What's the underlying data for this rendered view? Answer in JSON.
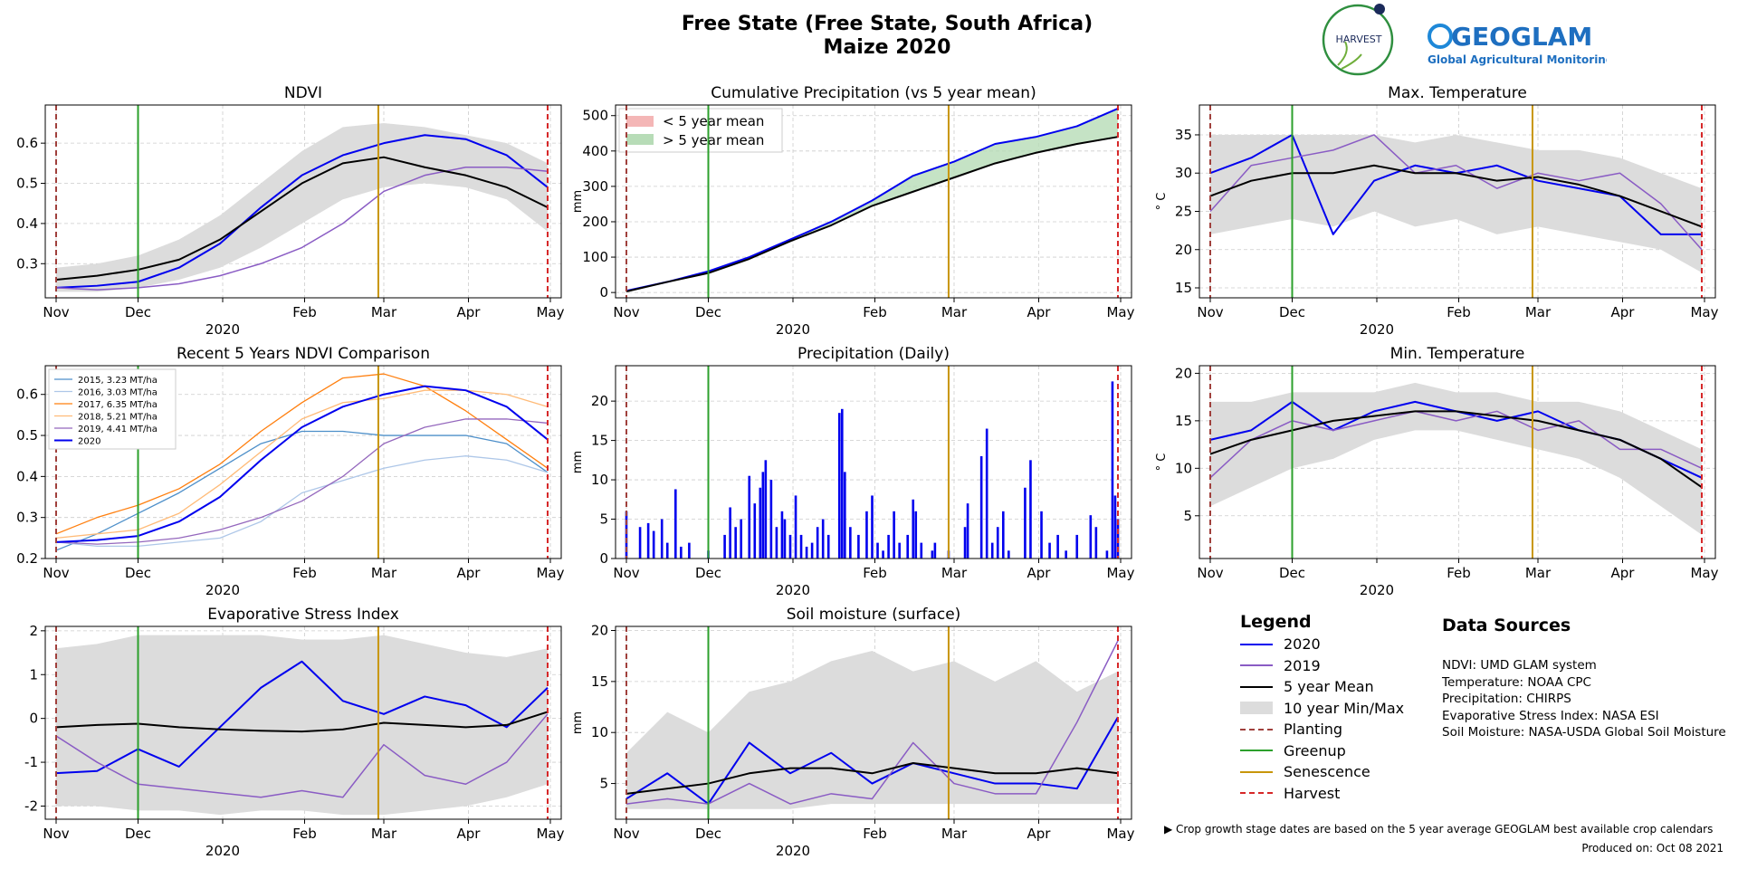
{
  "header": {
    "title_line1": "Free State (Free State, South Africa)",
    "title_line2": "Maize 2020"
  },
  "logos": {
    "harvest": "HARVEST",
    "geoglam_main": "GEOGLAM",
    "geoglam_sub": "Global Agricultural Monitoring"
  },
  "colors": {
    "y2020": "#0000ee",
    "y2019": "#8a5cc4",
    "mean": "#000000",
    "range": "#dcdcdc",
    "planting": "#a0403c",
    "greenup": "#2ca02c",
    "senescence": "#c8960a",
    "harvest": "#d62728"
  },
  "axes": {
    "months": [
      "Nov",
      "Dec",
      "Feb",
      "Mar",
      "Apr",
      "May"
    ],
    "year_label": "2020",
    "stage_days": {
      "planting": 0,
      "greenup": 30,
      "senescence": 118,
      "harvest": 180
    }
  },
  "legend": {
    "title": "Legend",
    "items": [
      "2020",
      "2019",
      "5 year Mean",
      "10 year Min/Max",
      "Planting",
      "Greenup",
      "Senescence",
      "Harvest"
    ]
  },
  "sources": {
    "title": "Data Sources",
    "lines": [
      "NDVI: UMD GLAM system",
      "Temperature: NOAA CPC",
      "Precipitation: CHIRPS",
      "Evaporative Stress Index: NASA ESI",
      "Soil Moisture: NASA-USDA Global Soil Moisture"
    ]
  },
  "footnote": "▶ Crop growth stage dates are based on the 5 year average GEOGLAM best available crop calendars",
  "produced": "Produced on: Oct 08 2021",
  "chart_data": [
    {
      "id": "ndvi",
      "type": "line",
      "title": "NDVI",
      "ylabel": "",
      "x": [
        0,
        15,
        30,
        45,
        60,
        75,
        90,
        105,
        120,
        135,
        150,
        165,
        180
      ],
      "ylim": [
        0.215,
        0.695
      ],
      "yticks": [
        0.3,
        0.4,
        0.5,
        0.6
      ],
      "band": {
        "min": [
          0.23,
          0.23,
          0.24,
          0.26,
          0.29,
          0.34,
          0.4,
          0.46,
          0.49,
          0.5,
          0.49,
          0.46,
          0.38
        ],
        "max": [
          0.29,
          0.3,
          0.32,
          0.36,
          0.42,
          0.5,
          0.58,
          0.64,
          0.65,
          0.64,
          0.62,
          0.6,
          0.55
        ]
      },
      "series": [
        {
          "name": "2020",
          "values": [
            0.24,
            0.245,
            0.255,
            0.29,
            0.35,
            0.44,
            0.52,
            0.57,
            0.6,
            0.62,
            0.61,
            0.57,
            0.49
          ]
        },
        {
          "name": "2019",
          "values": [
            0.24,
            0.235,
            0.24,
            0.25,
            0.27,
            0.3,
            0.34,
            0.4,
            0.48,
            0.52,
            0.54,
            0.54,
            0.53
          ]
        },
        {
          "name": "5 year Mean",
          "values": [
            0.26,
            0.27,
            0.285,
            0.31,
            0.36,
            0.43,
            0.5,
            0.55,
            0.565,
            0.54,
            0.52,
            0.49,
            0.44
          ]
        }
      ]
    },
    {
      "id": "cumprecip",
      "type": "area",
      "title": "Cumulative Precipitation (vs 5 year mean)",
      "ylabel": "mm",
      "x": [
        0,
        15,
        30,
        45,
        60,
        75,
        90,
        105,
        120,
        135,
        150,
        165,
        180
      ],
      "ylim": [
        -15,
        530
      ],
      "yticks": [
        0,
        100,
        200,
        300,
        400,
        500
      ],
      "fill_legend": [
        "< 5 year mean",
        "> 5 year mean"
      ],
      "series": [
        {
          "name": "2020",
          "values": [
            5,
            30,
            60,
            100,
            150,
            200,
            260,
            330,
            370,
            420,
            440,
            470,
            520
          ]
        },
        {
          "name": "5 year Mean",
          "values": [
            3,
            30,
            55,
            95,
            145,
            190,
            245,
            285,
            325,
            365,
            395,
            420,
            440
          ]
        }
      ]
    },
    {
      "id": "maxtemp",
      "type": "line",
      "title": "Max. Temperature",
      "ylabel": "° C",
      "x": [
        0,
        15,
        30,
        45,
        60,
        75,
        90,
        105,
        120,
        135,
        150,
        165,
        180
      ],
      "ylim": [
        13.7,
        38.9
      ],
      "yticks": [
        15,
        20,
        25,
        30,
        35
      ],
      "band": {
        "min": [
          22,
          23,
          24,
          23,
          25,
          23,
          24,
          22,
          23,
          22,
          21,
          20,
          17
        ],
        "max": [
          35,
          35,
          35,
          35,
          35,
          34,
          35,
          34,
          33,
          33,
          32,
          30,
          28
        ]
      },
      "series": [
        {
          "name": "2020",
          "values": [
            30,
            32,
            35,
            22,
            29,
            31,
            30,
            31,
            29,
            28,
            27,
            22,
            22
          ]
        },
        {
          "name": "2019",
          "values": [
            25,
            31,
            32,
            33,
            35,
            30,
            31,
            28,
            30,
            29,
            30,
            26,
            20
          ]
        },
        {
          "name": "5 year Mean",
          "values": [
            27,
            29,
            30,
            30,
            31,
            30,
            30,
            29,
            29.5,
            28.5,
            27,
            25,
            23
          ]
        }
      ]
    },
    {
      "id": "ndvi5",
      "type": "line",
      "title": "Recent 5 Years NDVI Comparison",
      "ylabel": "",
      "x": [
        0,
        15,
        30,
        45,
        60,
        75,
        90,
        105,
        120,
        135,
        150,
        165,
        180
      ],
      "ylim": [
        0.2,
        0.67
      ],
      "yticks": [
        0.2,
        0.3,
        0.4,
        0.5,
        0.6
      ],
      "series": [
        {
          "name": "2015, 3.23 MT/ha",
          "color": "#4d8fc9",
          "values": [
            0.22,
            0.26,
            0.31,
            0.36,
            0.42,
            0.48,
            0.51,
            0.51,
            0.5,
            0.5,
            0.5,
            0.48,
            0.41
          ]
        },
        {
          "name": "2016, 3.03 MT/ha",
          "color": "#aec7e8",
          "values": [
            0.24,
            0.23,
            0.23,
            0.24,
            0.25,
            0.29,
            0.36,
            0.39,
            0.42,
            0.44,
            0.45,
            0.44,
            0.41
          ]
        },
        {
          "name": "2017, 6.35 MT/ha",
          "color": "#ff7f0e",
          "values": [
            0.26,
            0.3,
            0.33,
            0.37,
            0.43,
            0.51,
            0.58,
            0.64,
            0.65,
            0.62,
            0.56,
            0.49,
            0.42
          ]
        },
        {
          "name": "2018, 5.21 MT/ha",
          "color": "#ffbb78",
          "values": [
            0.25,
            0.26,
            0.27,
            0.31,
            0.38,
            0.46,
            0.54,
            0.58,
            0.59,
            0.61,
            0.61,
            0.6,
            0.57
          ]
        },
        {
          "name": "2019, 4.41 MT/ha",
          "color": "#9467bd",
          "values": [
            0.24,
            0.235,
            0.24,
            0.25,
            0.27,
            0.3,
            0.34,
            0.4,
            0.48,
            0.52,
            0.54,
            0.54,
            0.53
          ]
        },
        {
          "name": "2020",
          "color": "#0000ee",
          "bold": true,
          "values": [
            0.24,
            0.245,
            0.255,
            0.29,
            0.35,
            0.44,
            0.52,
            0.57,
            0.6,
            0.62,
            0.61,
            0.57,
            0.49
          ]
        }
      ]
    },
    {
      "id": "dailyprecip",
      "type": "bar",
      "title": "Precipitation (Daily)",
      "ylabel": "mm",
      "ylim": [
        0,
        24.5
      ],
      "yticks": [
        0,
        5,
        10,
        15,
        20
      ],
      "bars": [
        [
          0,
          6
        ],
        [
          5,
          4
        ],
        [
          8,
          4.5
        ],
        [
          10,
          3.5
        ],
        [
          13,
          5
        ],
        [
          15,
          2
        ],
        [
          18,
          8.8
        ],
        [
          20,
          1.5
        ],
        [
          23,
          2
        ],
        [
          30,
          1
        ],
        [
          36,
          3
        ],
        [
          38,
          6.5
        ],
        [
          40,
          4
        ],
        [
          42,
          5
        ],
        [
          45,
          10.5
        ],
        [
          47,
          7
        ],
        [
          49,
          9
        ],
        [
          50,
          11
        ],
        [
          51,
          12.5
        ],
        [
          53,
          10
        ],
        [
          55,
          4
        ],
        [
          57,
          6
        ],
        [
          58,
          5
        ],
        [
          60,
          3
        ],
        [
          62,
          8
        ],
        [
          64,
          3
        ],
        [
          66,
          1.5
        ],
        [
          68,
          2
        ],
        [
          70,
          4
        ],
        [
          72,
          5
        ],
        [
          74,
          3
        ],
        [
          78,
          18.5
        ],
        [
          79,
          19
        ],
        [
          80,
          11
        ],
        [
          82,
          4
        ],
        [
          85,
          3
        ],
        [
          88,
          6
        ],
        [
          90,
          8
        ],
        [
          92,
          2
        ],
        [
          94,
          1
        ],
        [
          96,
          3
        ],
        [
          98,
          6
        ],
        [
          100,
          2
        ],
        [
          103,
          3
        ],
        [
          105,
          7.5
        ],
        [
          106,
          6
        ],
        [
          108,
          2
        ],
        [
          112,
          1
        ],
        [
          113,
          2
        ],
        [
          118,
          1
        ],
        [
          124,
          4
        ],
        [
          125,
          7
        ],
        [
          130,
          13
        ],
        [
          132,
          16.5
        ],
        [
          134,
          2
        ],
        [
          136,
          4
        ],
        [
          138,
          6
        ],
        [
          140,
          1
        ],
        [
          146,
          9
        ],
        [
          148,
          12.5
        ],
        [
          152,
          6
        ],
        [
          155,
          2
        ],
        [
          158,
          3
        ],
        [
          161,
          1
        ],
        [
          165,
          3
        ],
        [
          170,
          5.5
        ],
        [
          172,
          4
        ],
        [
          176,
          1
        ],
        [
          178,
          22.5
        ],
        [
          179,
          8
        ],
        [
          180,
          5
        ]
      ]
    },
    {
      "id": "mintemp",
      "type": "line",
      "title": "Min. Temperature",
      "ylabel": "° C",
      "x": [
        0,
        15,
        30,
        45,
        60,
        75,
        90,
        105,
        120,
        135,
        150,
        165,
        180
      ],
      "ylim": [
        0.5,
        20.8
      ],
      "yticks": [
        5,
        10,
        15,
        20
      ],
      "band": {
        "min": [
          6,
          8,
          10,
          11,
          13,
          14,
          14,
          13,
          12,
          11,
          9,
          6,
          3
        ],
        "max": [
          17,
          17,
          18,
          18,
          18,
          19,
          18,
          18,
          17,
          17,
          16,
          14,
          12
        ]
      },
      "series": [
        {
          "name": "2020",
          "values": [
            13,
            14,
            17,
            14,
            16,
            17,
            16,
            15,
            16,
            14,
            13,
            11,
            9
          ]
        },
        {
          "name": "2019",
          "values": [
            9,
            13,
            15,
            14,
            15,
            16,
            15,
            16,
            14,
            15,
            12,
            12,
            10
          ]
        },
        {
          "name": "5 year Mean",
          "values": [
            11.5,
            13,
            14,
            15,
            15.5,
            16,
            16,
            15.5,
            15,
            14,
            13,
            11,
            8
          ]
        }
      ]
    },
    {
      "id": "esi",
      "type": "line",
      "title": "Evaporative Stress Index",
      "ylabel": "",
      "x": [
        0,
        15,
        30,
        45,
        60,
        75,
        90,
        105,
        120,
        135,
        150,
        165,
        180
      ],
      "ylim": [
        -2.3,
        2.1
      ],
      "yticks": [
        -2,
        -1,
        0,
        1,
        2
      ],
      "band": {
        "min": [
          -2.0,
          -2.0,
          -2.1,
          -2.1,
          -2.2,
          -2.1,
          -2.1,
          -2.2,
          -2.2,
          -2.1,
          -2.0,
          -1.8,
          -1.5
        ],
        "max": [
          1.6,
          1.7,
          1.9,
          1.9,
          1.9,
          1.9,
          1.8,
          1.8,
          1.9,
          1.7,
          1.5,
          1.4,
          1.6
        ]
      },
      "series": [
        {
          "name": "2020",
          "values": [
            -1.25,
            -1.2,
            -0.7,
            -1.1,
            -0.2,
            0.7,
            1.3,
            0.4,
            0.1,
            0.5,
            0.3,
            -0.2,
            0.7
          ]
        },
        {
          "name": "2019",
          "values": [
            -0.4,
            -1.0,
            -1.5,
            -1.6,
            -1.7,
            -1.8,
            -1.65,
            -1.8,
            -0.6,
            -1.3,
            -1.5,
            -1.0,
            0.1
          ]
        },
        {
          "name": "5 year Mean",
          "values": [
            -0.2,
            -0.15,
            -0.12,
            -0.2,
            -0.25,
            -0.28,
            -0.3,
            -0.25,
            -0.1,
            -0.15,
            -0.2,
            -0.15,
            0.15
          ]
        }
      ]
    },
    {
      "id": "soil",
      "type": "line",
      "title": "Soil moisture (surface)",
      "ylabel": "mm",
      "x": [
        0,
        15,
        30,
        45,
        60,
        75,
        90,
        105,
        120,
        135,
        150,
        165,
        180
      ],
      "ylim": [
        1.5,
        20.4
      ],
      "yticks": [
        5,
        10,
        15,
        20
      ],
      "band": {
        "min": [
          2.5,
          2.5,
          2.5,
          2.5,
          2.5,
          3,
          3,
          3,
          3,
          3,
          3,
          3,
          3
        ],
        "max": [
          8,
          12,
          10,
          14,
          15,
          17,
          18,
          16,
          17,
          15,
          17,
          14,
          16
        ]
      },
      "series": [
        {
          "name": "2020",
          "values": [
            3.5,
            6,
            3,
            9,
            6,
            8,
            5,
            7,
            6,
            5,
            5,
            4.5,
            11.5
          ]
        },
        {
          "name": "2019",
          "values": [
            3,
            3.5,
            3,
            5,
            3,
            4,
            3.5,
            9,
            5,
            4,
            4,
            11,
            19
          ]
        },
        {
          "name": "5 year Mean",
          "values": [
            4,
            4.5,
            5,
            6,
            6.5,
            6.5,
            6,
            7,
            6.5,
            6,
            6,
            6.5,
            6
          ]
        }
      ]
    }
  ]
}
